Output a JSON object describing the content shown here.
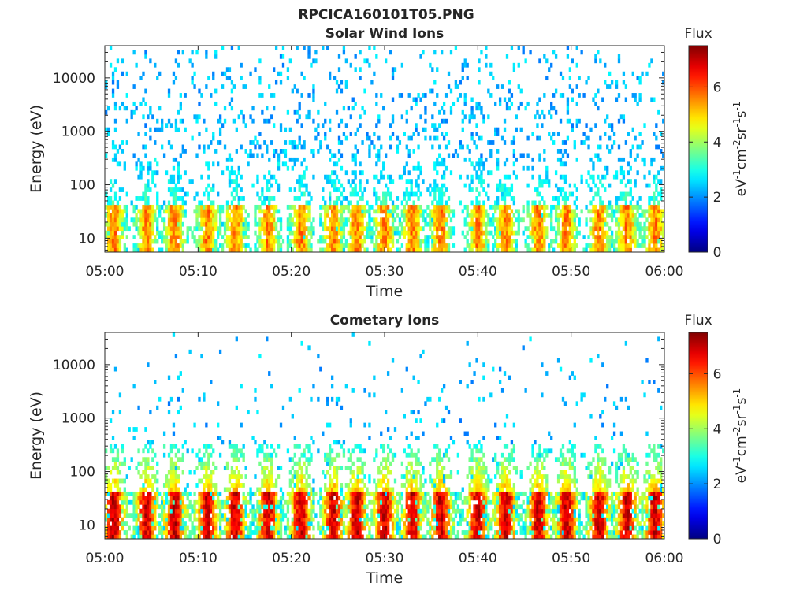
{
  "figure": {
    "filename": "RPCICA160101T05.PNG"
  },
  "chart_data": [
    {
      "type": "heatmap",
      "title": "Solar Wind Ions",
      "xlabel": "Time",
      "ylabel": "Energy (eV)",
      "x_ticks": [
        "05:00",
        "05:10",
        "05:20",
        "05:30",
        "05:40",
        "05:50",
        "06:00"
      ],
      "xlim": [
        "05:00",
        "06:00"
      ],
      "y_scale": "log",
      "ylim": [
        5.5,
        40000
      ],
      "y_ticks": [
        10,
        100,
        1000,
        10000
      ],
      "y_tick_labels": [
        "10",
        "100",
        "1000",
        "10000"
      ],
      "colorbar": {
        "title": "Flux",
        "label": "eV-1cm-2sr-1s-1",
        "range": [
          0,
          7.5
        ],
        "ticks": [
          0,
          2,
          4,
          6
        ]
      },
      "colormap": "jet",
      "pulse_times_min": [
        1,
        4.5,
        7.5,
        11,
        14,
        17.5,
        21,
        24.5,
        27,
        30,
        33,
        36,
        40,
        43,
        46.5,
        49.5,
        53,
        56,
        59
      ],
      "core_energy_range": [
        6,
        45
      ],
      "core_peak_flux": 5.6,
      "background_flux": [
        2.0,
        2.8
      ]
    },
    {
      "type": "heatmap",
      "title": "Cometary Ions",
      "xlabel": "Time",
      "ylabel": "Energy (eV)",
      "x_ticks": [
        "05:00",
        "05:10",
        "05:20",
        "05:30",
        "05:40",
        "05:50",
        "06:00"
      ],
      "xlim": [
        "05:00",
        "06:00"
      ],
      "y_scale": "log",
      "ylim": [
        5.5,
        40000
      ],
      "y_ticks": [
        10,
        100,
        1000,
        10000
      ],
      "y_tick_labels": [
        "10",
        "100",
        "1000",
        "10000"
      ],
      "colorbar": {
        "title": "Flux",
        "label": "eV-1cm-2sr-1s-1",
        "range": [
          0,
          7.5
        ],
        "ticks": [
          0,
          2,
          4,
          6
        ]
      },
      "colormap": "jet",
      "pulse_times_min": [
        1,
        4.5,
        7.5,
        11,
        14,
        17.5,
        21,
        24.5,
        27,
        30,
        33,
        36,
        40,
        43,
        46.5,
        49.5,
        53,
        56,
        59
      ],
      "core_energy_range": [
        6,
        45
      ],
      "core_peak_flux": 6.9,
      "background_flux": [
        2.0,
        3.0
      ]
    }
  ]
}
